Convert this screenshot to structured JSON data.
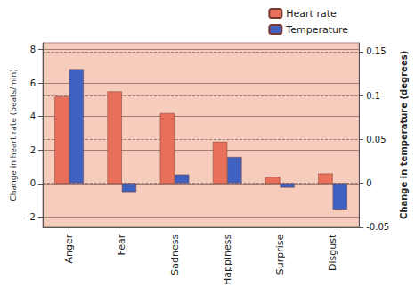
{
  "chart_data": {
    "type": "bar",
    "categories": [
      "Anger",
      "Fear",
      "Sadness",
      "Happiness",
      "Surprise",
      "Disgust"
    ],
    "series": [
      {
        "name": "Heart rate",
        "color": "#e8705a",
        "values": [
          5.2,
          5.5,
          4.2,
          2.5,
          0.4,
          0.6
        ]
      },
      {
        "name": "Temperature",
        "color": "#3f62c0",
        "axis": "y2",
        "values": [
          0.13,
          -0.01,
          0.01,
          0.03,
          -0.005,
          -0.03
        ]
      }
    ],
    "ylabel": "Change in heart rate (beats/min)",
    "y2label": "Change in temperature (degrees)",
    "ylim": [
      -2.6,
      8.4
    ],
    "yticks": [
      -2,
      0,
      2,
      4,
      6,
      8
    ],
    "y2lim": [
      -0.05,
      0.16
    ],
    "y2ticks": [
      -0.05,
      0,
      0.05,
      0.1,
      0.15
    ],
    "grid": true,
    "legend": "top-right"
  }
}
